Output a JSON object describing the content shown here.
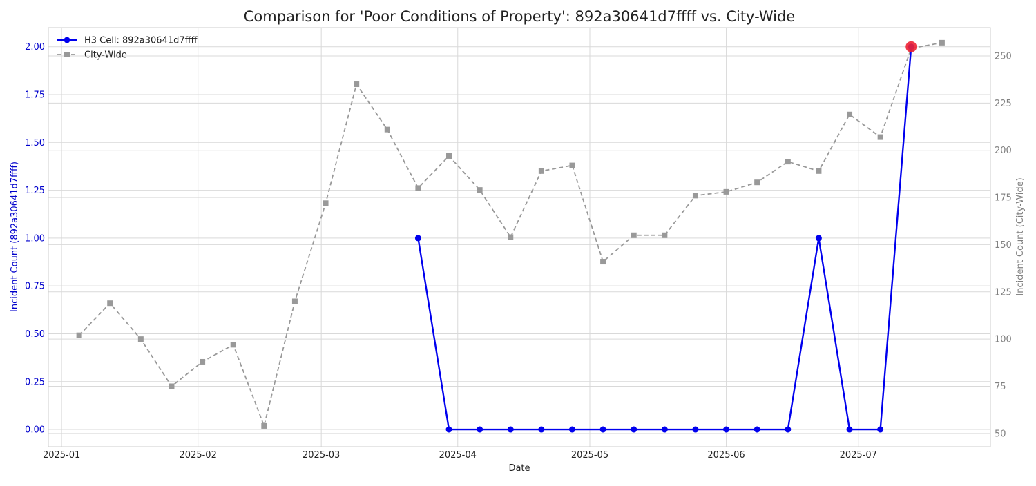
{
  "chart_data": {
    "type": "line",
    "title": "Comparison for 'Poor Conditions of Property': 892a30641d7ffff vs. City-Wide",
    "xlabel": "Date",
    "ylabel_left": "Incident Count (892a30641d7ffff)",
    "ylabel_right": "Incident Count (City-Wide)",
    "x_tick_labels": [
      "2025-01",
      "2025-02",
      "2025-03",
      "2025-04",
      "2025-05",
      "2025-06",
      "2025-07"
    ],
    "y_left_ticks": [
      "0.00",
      "0.25",
      "0.50",
      "0.75",
      "1.00",
      "1.25",
      "1.50",
      "1.75",
      "2.00"
    ],
    "y_right_ticks": [
      "50",
      "75",
      "100",
      "125",
      "150",
      "175",
      "200",
      "225",
      "250"
    ],
    "y_left_range": [
      -0.09,
      2.1
    ],
    "y_right_range": [
      43,
      265
    ],
    "x_range": [
      "2024-12-29",
      "2025-07-31"
    ],
    "grid": true,
    "legend_position": "top-left",
    "colors": {
      "cell": "#0000ee",
      "city": "#999999",
      "highlight": "#ee2233",
      "left_axis_text": "#0000cc",
      "right_axis_text": "#808080"
    },
    "series": [
      {
        "name": "H3 Cell: 892a30641d7ffff",
        "axis": "left",
        "points": [
          [
            "2025-03-23",
            1
          ],
          [
            "2025-03-30",
            0
          ],
          [
            "2025-04-06",
            0
          ],
          [
            "2025-04-13",
            0
          ],
          [
            "2025-04-20",
            0
          ],
          [
            "2025-04-27",
            0
          ],
          [
            "2025-05-04",
            0
          ],
          [
            "2025-05-11",
            0
          ],
          [
            "2025-05-18",
            0
          ],
          [
            "2025-05-25",
            0
          ],
          [
            "2025-06-01",
            0
          ],
          [
            "2025-06-08",
            0
          ],
          [
            "2025-06-15",
            0
          ],
          [
            "2025-06-22",
            1
          ],
          [
            "2025-06-29",
            0
          ],
          [
            "2025-07-06",
            0
          ],
          [
            "2025-07-13",
            2
          ]
        ]
      },
      {
        "name": "City-Wide",
        "axis": "right",
        "points": [
          [
            "2025-01-05",
            102
          ],
          [
            "2025-01-12",
            119
          ],
          [
            "2025-01-19",
            100
          ],
          [
            "2025-01-26",
            75
          ],
          [
            "2025-02-02",
            88
          ],
          [
            "2025-02-09",
            97
          ],
          [
            "2025-02-16",
            54
          ],
          [
            "2025-02-23",
            120
          ],
          [
            "2025-03-02",
            172
          ],
          [
            "2025-03-09",
            235
          ],
          [
            "2025-03-16",
            211
          ],
          [
            "2025-03-23",
            180
          ],
          [
            "2025-03-30",
            197
          ],
          [
            "2025-04-06",
            179
          ],
          [
            "2025-04-13",
            154
          ],
          [
            "2025-04-20",
            189
          ],
          [
            "2025-04-27",
            192
          ],
          [
            "2025-05-04",
            141
          ],
          [
            "2025-05-11",
            155
          ],
          [
            "2025-05-18",
            155
          ],
          [
            "2025-05-25",
            176
          ],
          [
            "2025-06-01",
            178
          ],
          [
            "2025-06-08",
            183
          ],
          [
            "2025-06-15",
            194
          ],
          [
            "2025-06-22",
            189
          ],
          [
            "2025-06-29",
            219
          ],
          [
            "2025-07-06",
            207
          ],
          [
            "2025-07-13",
            254
          ],
          [
            "2025-07-20",
            257
          ]
        ]
      }
    ],
    "highlight_point": [
      "2025-07-13",
      2
    ]
  }
}
